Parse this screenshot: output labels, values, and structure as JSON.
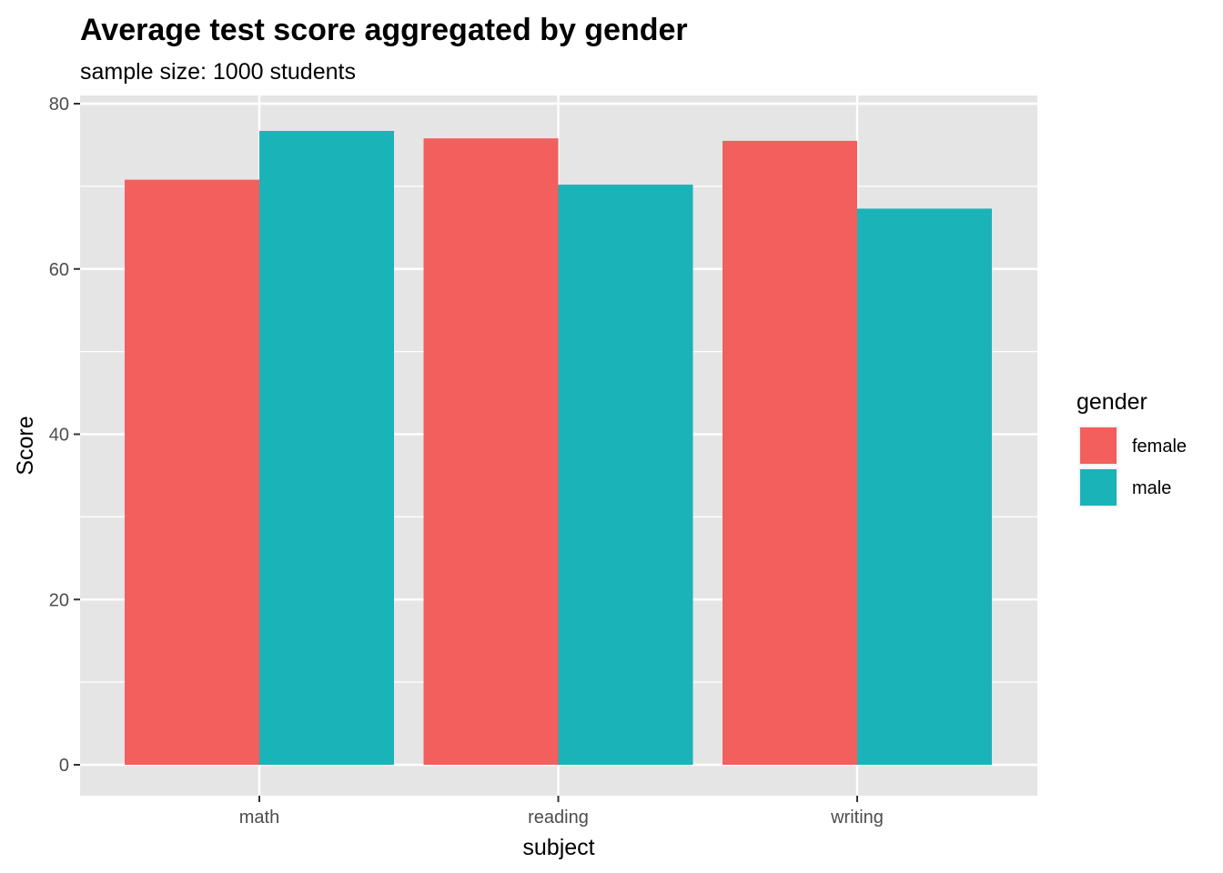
{
  "chart_data": {
    "type": "bar",
    "title": "Average test score aggregated by gender",
    "subtitle": "sample size: 1000 students",
    "xlabel": "subject",
    "ylabel": "Score",
    "categories": [
      "math",
      "reading",
      "writing"
    ],
    "series": [
      {
        "name": "female",
        "color": "#F25F5C",
        "values": [
          70.8,
          75.8,
          75.5
        ]
      },
      {
        "name": "male",
        "color": "#1AB3B8",
        "values": [
          76.7,
          70.2,
          67.3
        ]
      }
    ],
    "ylim": [
      0,
      80
    ],
    "yticks": [
      0,
      20,
      40,
      60,
      80
    ],
    "grid": true,
    "legend": {
      "title": "gender",
      "position": "right"
    },
    "colors": {
      "panel": "#E5E5E5",
      "grid": "#FFFFFF"
    }
  }
}
